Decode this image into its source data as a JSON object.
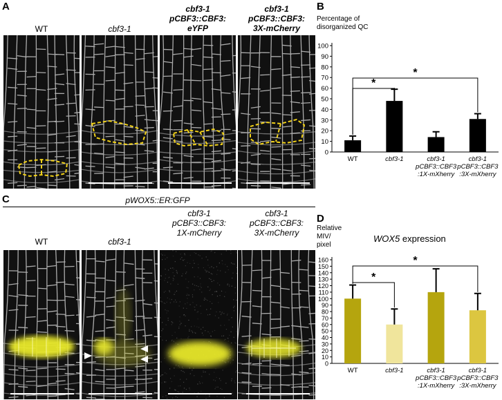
{
  "panels": {
    "A": {
      "label": "A",
      "titles": [
        {
          "lines": [
            "WT"
          ],
          "italic": false
        },
        {
          "lines": [
            "cbf3-1"
          ],
          "italic": true
        },
        {
          "lines": [
            "cbf3-1",
            "pCBF3::CBF3:",
            "eYFP"
          ],
          "italic": true
        },
        {
          "lines": [
            "cbf3-1",
            "pCBF3::CBF3:",
            "3X-mCherry"
          ],
          "italic": true
        }
      ]
    },
    "B": {
      "label": "B"
    },
    "C": {
      "label": "C",
      "header": "pWOX5::ER:GFP",
      "titles": [
        {
          "lines": [
            "WT"
          ],
          "italic": false
        },
        {
          "lines": [
            "cbf3-1"
          ],
          "italic": true
        },
        {
          "lines": [
            "cbf3-1",
            "pCBF3::CBF3:",
            "1X-mCherry"
          ],
          "italic": true
        },
        {
          "lines": [
            "cbf3-1",
            "pCBF3::CBF3:",
            "3X-mCherry"
          ],
          "italic": true
        }
      ]
    },
    "D": {
      "label": "D"
    }
  },
  "colors": {
    "qc_outline": "#f2d21a",
    "gfp_yellow": "#e8e82a",
    "bar_black": "#000000",
    "wox_olive": "#b5a50e",
    "wox_pale": "#f0e59c",
    "wox_mid": "#dcc640"
  },
  "chart_data": [
    {
      "type": "bar",
      "ylabel": "Percentage of disorganized QC",
      "ylabel_lines": [
        "Percentage of",
        "disorganized QC"
      ],
      "categories": [
        "WT",
        "cbf3-1",
        "cbf3-1 pCBF3::CBF3 :1X-mXherry",
        "cbf3-1 pCBF3::CBF3 :3X-mXherry"
      ],
      "category_lines": [
        [
          "WT"
        ],
        [
          "cbf3-1"
        ],
        [
          "cbf3-1",
          "pCBF3::CBF3",
          ":1X-mXherry"
        ],
        [
          "cbf3-1",
          "pCBF3::CBF3",
          ":3X-mXherry"
        ]
      ],
      "values": [
        11,
        48,
        14,
        31
      ],
      "errors": [
        4,
        11,
        5,
        5
      ],
      "ylim": [
        0,
        100
      ],
      "yticks": [
        0,
        10,
        20,
        30,
        40,
        50,
        60,
        70,
        80,
        90,
        100
      ],
      "significance": [
        {
          "from": 0,
          "to": 1,
          "label": "*"
        },
        {
          "from": 0,
          "to": 3,
          "label": "*"
        }
      ]
    },
    {
      "type": "bar",
      "title": "WOX5 expression",
      "title_italic": "WOX5",
      "title_rest": " expression",
      "ylabel": "Relative MIV/ pixel",
      "ylabel_lines": [
        "Relative",
        "MIV/",
        "pixel"
      ],
      "categories": [
        "WT",
        "cbf3-1",
        "cbf3-1 pCBF3::CBF3 :1X-mXherry",
        "cbf3-1 pCBF3::CBF3 :3X-mXherry"
      ],
      "category_lines": [
        [
          "WT"
        ],
        [
          "cbf3-1"
        ],
        [
          "cbf3-1",
          "pCBF3::CBF3",
          ":1X-mXherry"
        ],
        [
          "cbf3-1",
          "pCBF3::CBF3",
          ":3X-mXherry"
        ]
      ],
      "values": [
        100,
        60,
        110,
        82
      ],
      "errors": [
        21,
        24,
        36,
        26
      ],
      "ylim": [
        0,
        160
      ],
      "yticks": [
        0,
        10,
        20,
        30,
        40,
        50,
        60,
        70,
        80,
        90,
        100,
        110,
        120,
        130,
        140,
        150,
        160
      ],
      "significance": [
        {
          "from": 0,
          "to": 1,
          "label": "*"
        },
        {
          "from": 0,
          "to": 3,
          "label": "*"
        }
      ]
    }
  ]
}
